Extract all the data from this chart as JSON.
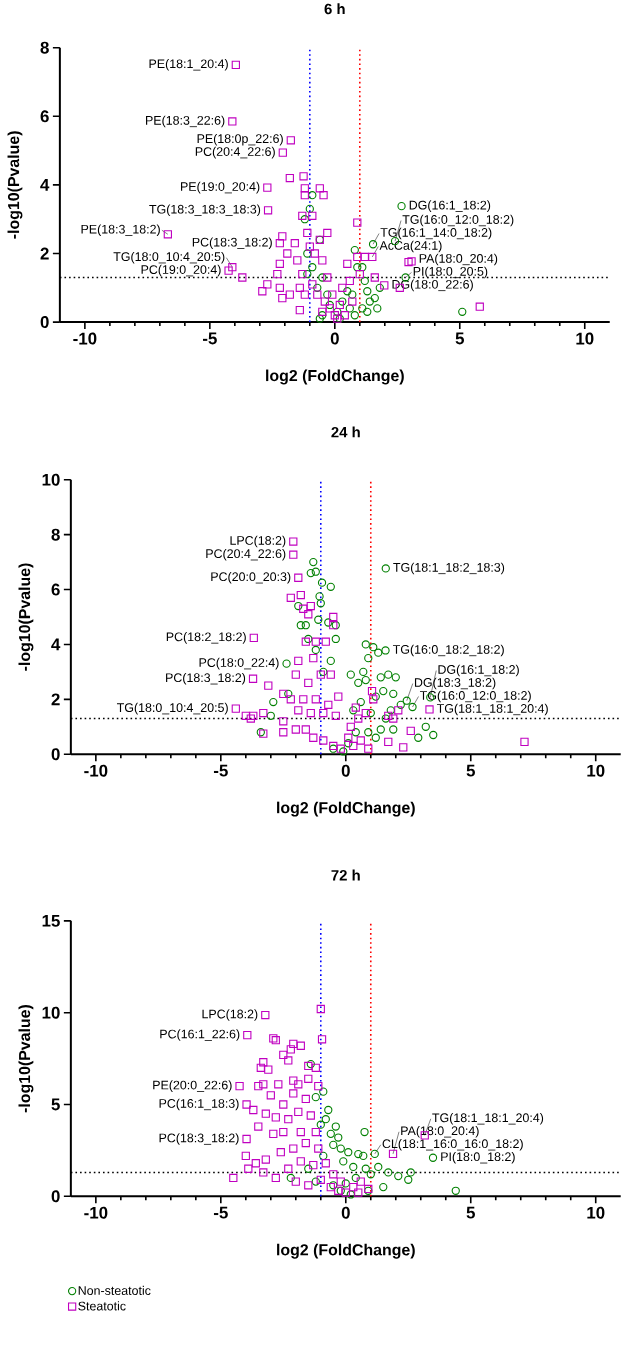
{
  "chart_data": [
    {
      "type": "scatter",
      "title": "6 h",
      "xlabel": "log2 (FoldChange)",
      "ylabel": "-log10(Pvalue)",
      "xlim": [
        -11,
        11
      ],
      "xticks": [
        -10,
        -5,
        0,
        5,
        10
      ],
      "ylim": [
        0,
        8
      ],
      "yticks": [
        0,
        2,
        4,
        6,
        8
      ],
      "series": [
        {
          "color": "#008000",
          "marker": "circle",
          "x": [
            -0.9,
            -1.0,
            -1.2,
            -0.6,
            -1.1,
            -0.9,
            -1.1,
            -0.5,
            -0.7,
            -0.3,
            -0.5,
            -0.6,
            0.1,
            0.3,
            0.5,
            0.8,
            0.9,
            1.1,
            1.2,
            1.53,
            2.67,
            2.41,
            2.83,
            1.3,
            1.4,
            1.6,
            1.7,
            1.3,
            1.1,
            0.8,
            0.7,
            5.1,
            1.8,
            0.6,
            0.2,
            -0.2
          ],
          "values": [
            3.7,
            3.3,
            3.0,
            2.4,
            2.0,
            1.6,
            1.4,
            1.3,
            1.0,
            0.8,
            0.2,
            0.1,
            0.3,
            0.6,
            0.9,
            2.1,
            1.6,
            1.6,
            1.2,
            2.27,
            3.38,
            2.36,
            1.3,
            0.9,
            0.6,
            0.7,
            0.4,
            0.3,
            0.4,
            0.2,
            0.8,
            0.3,
            1.0,
            0.4,
            0.1,
            0.5
          ]
        },
        {
          "color": "#c000c0",
          "marker": "square",
          "x": [
            -3.96,
            -4.1,
            -1.76,
            -2.08,
            -2.7,
            -2.67,
            -6.68,
            -2.2,
            -4.1,
            -4.25,
            1.5,
            3.07,
            1.98,
            2.95,
            -1.25,
            -1.8,
            -1.2,
            -0.6,
            -1.2,
            -0.45,
            -1.3,
            -0.9,
            -1.1,
            -0.3,
            -0.6,
            -2.1,
            -1.6,
            -1.9,
            -2.2,
            -1.5,
            -1.0,
            -0.8,
            -0.5,
            -1.3,
            -2.3,
            -2.7,
            -2.9,
            -2.2,
            -2.1,
            -1.8,
            -1.4,
            -1.2,
            -0.9,
            -0.7,
            -0.4,
            -0.2,
            0.0,
            0.1,
            -0.5,
            -1.4,
            -3.7,
            0.9,
            0.9,
            1.2,
            1.6,
            2.6,
            5.8,
            0.5,
            0.6,
            0.3,
            0.2,
            0.7,
            0.4,
            -0.1,
            -0.3,
            1.0
          ],
          "values": [
            7.5,
            5.85,
            5.3,
            4.94,
            3.92,
            3.26,
            2.56,
            2.3,
            1.6,
            1.5,
            1.9,
            1.77,
            1.07,
            1.75,
            4.25,
            4.2,
            3.9,
            3.9,
            3.7,
            3.7,
            3.1,
            3.1,
            2.6,
            2.6,
            2.4,
            2.5,
            2.3,
            2.0,
            1.7,
            1.8,
            2.2,
            2.0,
            1.8,
            1.4,
            1.4,
            1.1,
            0.9,
            1.0,
            0.7,
            0.8,
            1.0,
            0.8,
            1.1,
            0.8,
            0.6,
            0.4,
            0.2,
            0.1,
            0.3,
            0.35,
            1.3,
            2.9,
            1.9,
            1.9,
            1.3,
            1.0,
            0.45,
            1.7,
            1.2,
            1.0,
            0.5,
            0.6,
            0.2,
            0.8,
            1.3,
            1.4
          ]
        }
      ],
      "ref_lines": [
        {
          "axis": "x",
          "value": -1,
          "color": "#0000ff",
          "line_style": "dotted"
        },
        {
          "axis": "x",
          "value": 1,
          "color": "#ff0000",
          "line_style": "dotted"
        },
        {
          "axis": "y",
          "value": 1.3,
          "color": "#000000",
          "line_style": "dotted"
        }
      ],
      "annotations": [
        {
          "text": "PE(18:1_20:4)",
          "x": -3.96,
          "y": 7.5
        },
        {
          "text": "PE(18:3_22:6)",
          "x": -4.1,
          "y": 5.85
        },
        {
          "text": "PE(18:0p_22:6)",
          "x": -1.76,
          "y": 5.3
        },
        {
          "text": "PC(20:4_22:6)",
          "x": -2.08,
          "y": 4.94
        },
        {
          "text": "PE(19:0_20:4)",
          "x": -2.7,
          "y": 3.92
        },
        {
          "text": "TG(18:3_18:3_18:3)",
          "x": -2.67,
          "y": 3.26
        },
        {
          "text": "PE(18:3_18:2)",
          "x": -6.68,
          "y": 2.56
        },
        {
          "text": "PC(18:3_18:2)",
          "x": -2.2,
          "y": 2.3
        },
        {
          "text": "TG(18:0_10:4_20:5)",
          "x": -4.1,
          "y": 1.6
        },
        {
          "text": "PC(19:0_20:4)",
          "x": -4.25,
          "y": 1.5
        },
        {
          "text": "AcCa(24:1)",
          "x": 1.5,
          "y": 1.9
        },
        {
          "text": "TG(16:1_14:0_18:2)",
          "x": 1.53,
          "y": 2.27
        },
        {
          "text": "DG(16:1_18:2)",
          "x": 2.67,
          "y": 3.38
        },
        {
          "text": "TG(16:0_12:0_18:2)",
          "x": 2.41,
          "y": 2.36
        },
        {
          "text": "PA(18:0_20:4)",
          "x": 3.07,
          "y": 1.77
        },
        {
          "text": "PI(18:0_20:5)",
          "x": 2.83,
          "y": 1.3
        },
        {
          "text": "DG(18:0_22:6)",
          "x": 1.98,
          "y": 1.07
        }
      ]
    },
    {
      "type": "scatter",
      "title": "24 h",
      "xlabel": "log2 (FoldChange)",
      "ylabel": "-log10(Pvalue)",
      "xlim": [
        -11,
        11
      ],
      "xticks": [
        -10,
        -5,
        0,
        5,
        10
      ],
      "ylim": [
        0,
        10
      ],
      "yticks": [
        0,
        2,
        4,
        6,
        8,
        10
      ],
      "series": [
        {
          "color": "#008000",
          "marker": "circle",
          "x": [
            1.6,
            1.59,
            2.44,
            2.67,
            3.38,
            -2.37,
            -1.3,
            -1.4,
            -1.2,
            -0.95,
            -0.6,
            -1.05,
            -1.0,
            -1.1,
            -0.7,
            -0.4,
            -1.9,
            -1.8,
            -1.6,
            -1.5,
            -1.2,
            -0.4,
            -0.6,
            -0.9,
            -2.9,
            -2.3,
            -3.0,
            -3.4,
            -0.5,
            0.2,
            0.5,
            0.7,
            0.9,
            0.8,
            1.1,
            1.3,
            1.7,
            1.4,
            2.0,
            1.9,
            1.5,
            1.2,
            0.8,
            0.6,
            0.3,
            1.0,
            1.8,
            2.2,
            1.6,
            1.4,
            1.9,
            0.9,
            0.4,
            3.2,
            3.5,
            2.9,
            1.2,
            0.1,
            -0.1
          ],
          "values": [
            6.77,
            3.78,
            1.95,
            1.72,
            2.07,
            3.3,
            7.0,
            6.6,
            6.65,
            6.25,
            6.1,
            5.75,
            5.5,
            4.9,
            4.8,
            4.7,
            5.4,
            4.7,
            4.7,
            4.2,
            3.8,
            4.2,
            3.4,
            3.0,
            1.9,
            2.2,
            1.4,
            0.8,
            0.2,
            2.9,
            2.6,
            3.0,
            3.5,
            4.0,
            3.9,
            3.7,
            2.9,
            2.8,
            2.8,
            2.2,
            2.3,
            2.1,
            2.7,
            1.9,
            1.6,
            1.5,
            1.6,
            1.8,
            1.3,
            0.9,
            0.9,
            0.8,
            0.8,
            1.0,
            0.7,
            0.6,
            0.6,
            0.4,
            0.1
          ]
        },
        {
          "color": "#c000c0",
          "marker": "square",
          "x": [
            -2.1,
            -2.1,
            -1.9,
            -3.68,
            -3.71,
            -4.4,
            3.35,
            -2.2,
            -1.8,
            -1.7,
            -1.4,
            -1.5,
            -0.5,
            -0.5,
            -1.6,
            -1.2,
            -0.8,
            -1.9,
            -1.3,
            -2.0,
            -1.5,
            -1.0,
            -0.6,
            -3.1,
            -2.5,
            -2.2,
            -1.7,
            -1.2,
            -0.7,
            -0.3,
            -1.9,
            -1.4,
            -0.9,
            -0.4,
            -3.7,
            -4.0,
            -3.3,
            -3.8,
            -2.5,
            -2.5,
            -2.0,
            -1.6,
            -1.3,
            -0.9,
            -0.5,
            -0.2,
            -3.3,
            0.2,
            0.5,
            0.8,
            1.1,
            1.05,
            0.4,
            0.6,
            0.9,
            0.3,
            1.7,
            1.9,
            2.1,
            1.7,
            2.3,
            2.6,
            7.15,
            0.1
          ],
          "values": [
            7.75,
            7.27,
            6.43,
            4.24,
            2.75,
            1.66,
            1.63,
            5.7,
            5.8,
            5.3,
            5.4,
            5.1,
            5.0,
            4.7,
            4.1,
            4.1,
            4.1,
            3.4,
            3.5,
            2.9,
            2.6,
            2.9,
            2.9,
            2.5,
            2.2,
            2.0,
            2.0,
            2.0,
            1.8,
            2.1,
            1.6,
            1.5,
            1.5,
            1.4,
            1.4,
            1.4,
            1.5,
            1.3,
            1.2,
            0.8,
            0.9,
            0.9,
            0.6,
            0.5,
            0.3,
            0.2,
            0.75,
            1.0,
            1.3,
            1.5,
            2.0,
            2.3,
            1.7,
            0.5,
            0.2,
            0.3,
            1.4,
            1.3,
            1.6,
            0.45,
            0.25,
            0.85,
            0.45,
            0.6
          ]
        }
      ],
      "ref_lines": [
        {
          "axis": "x",
          "value": -1,
          "color": "#0000ff",
          "line_style": "dotted"
        },
        {
          "axis": "x",
          "value": 1,
          "color": "#ff0000",
          "line_style": "dotted"
        },
        {
          "axis": "y",
          "value": 1.3,
          "color": "#000000",
          "line_style": "dotted"
        }
      ],
      "annotations": [
        {
          "text": "LPC(18:2)",
          "x": -2.1,
          "y": 7.75
        },
        {
          "text": "PC(20:4_22:6)",
          "x": -2.1,
          "y": 7.27
        },
        {
          "text": "PC(20:0_20:3)",
          "x": -1.9,
          "y": 6.43
        },
        {
          "text": "PC(18:2_18:2)",
          "x": -3.68,
          "y": 4.24
        },
        {
          "text": "PC(18:0_22:4)",
          "x": -2.37,
          "y": 3.3
        },
        {
          "text": "PC(18:3_18:2)",
          "x": -3.71,
          "y": 2.75
        },
        {
          "text": "TG(18:0_10:4_20:5)",
          "x": -4.4,
          "y": 1.66
        },
        {
          "text": "TG(18:1_18:2_18:3)",
          "x": 1.6,
          "y": 6.77
        },
        {
          "text": "TG(16:0_18:2_18:2)",
          "x": 1.59,
          "y": 3.78
        },
        {
          "text": "DG(18:3_18:2)",
          "x": 2.44,
          "y": 1.95
        },
        {
          "text": "TG(16:0_12:0_18:2)",
          "x": 2.67,
          "y": 1.72
        },
        {
          "text": "DG(16:1_18:2)",
          "x": 3.38,
          "y": 2.07
        },
        {
          "text": "TG(18:1_18:1_20:4)",
          "x": 3.35,
          "y": 1.63
        }
      ]
    },
    {
      "type": "scatter",
      "title": "72 h",
      "xlabel": "log2 (FoldChange)",
      "ylabel": "-log10(Pvalue)",
      "xlim": [
        -11,
        11
      ],
      "xticks": [
        -10,
        -5,
        0,
        5,
        10
      ],
      "ylim": [
        0,
        15
      ],
      "yticks": [
        0,
        5,
        10,
        15
      ],
      "legend": "bottom",
      "series": [
        {
          "name": "Non-steatotic",
          "color": "#008000",
          "marker": "circle",
          "x": [
            1.16,
            3.49,
            -1.4,
            -1.2,
            -0.9,
            -0.7,
            -0.8,
            -0.4,
            -0.6,
            -0.3,
            -1.0,
            -0.5,
            -0.2,
            0.1,
            0.7,
            0.75,
            0.5,
            0.8,
            0.3,
            -0.1,
            -0.9,
            -1.5,
            -2.2,
            -1.2,
            -0.5,
            0.0,
            0.4,
            1.0,
            1.3,
            1.7,
            2.1,
            2.5,
            1.5,
            0.9,
            0.2,
            -0.2,
            4.4,
            2.6
          ],
          "values": [
            2.31,
            2.1,
            7.2,
            5.4,
            5.7,
            4.7,
            4.2,
            3.8,
            3.4,
            3.2,
            3.9,
            2.8,
            2.6,
            2.4,
            2.2,
            3.5,
            2.3,
            1.5,
            1.6,
            1.9,
            2.2,
            1.5,
            1.0,
            0.8,
            0.6,
            0.7,
            1.0,
            1.2,
            1.6,
            1.3,
            1.1,
            0.9,
            0.5,
            0.3,
            0.1,
            0.3,
            0.3,
            1.3
          ]
        },
        {
          "name": "Steatotic",
          "color": "#c000c0",
          "marker": "square",
          "x": [
            -3.22,
            -3.94,
            -4.25,
            -3.97,
            -3.97,
            1.89,
            3.16,
            -1.0,
            -0.95,
            -2.9,
            -2.8,
            -2.1,
            -2.2,
            -1.8,
            -2.5,
            -2.3,
            -3.3,
            -3.4,
            -3.1,
            -1.5,
            -1.2,
            -3.5,
            -3.3,
            -2.7,
            -2.1,
            -1.9,
            -1.5,
            -1.1,
            -3.0,
            -2.5,
            -2.1,
            -1.6,
            -3.7,
            -3.2,
            -2.8,
            -2.3,
            -1.9,
            -1.4,
            -3.5,
            -2.9,
            -2.5,
            -1.8,
            -1.2,
            -4.0,
            -3.6,
            -3.2,
            -2.6,
            -2.1,
            -1.6,
            -1.1,
            -4.5,
            -3.9,
            -3.3,
            -2.8,
            -2.3,
            -1.8,
            -1.3,
            -0.8,
            -0.5,
            -2.0,
            -1.5,
            -1.0,
            -0.6,
            -0.3,
            0.0,
            0.3,
            0.6,
            0.9,
            0.5,
            -0.2
          ],
          "values": [
            9.87,
            8.78,
            6.0,
            5.0,
            3.12,
            2.31,
            3.32,
            10.2,
            8.55,
            8.6,
            8.5,
            8.3,
            8.0,
            8.2,
            7.7,
            7.4,
            7.3,
            7.0,
            6.9,
            7.1,
            7.0,
            6.0,
            6.1,
            6.1,
            6.3,
            6.1,
            6.4,
            6.0,
            5.5,
            5.0,
            5.6,
            5.3,
            4.7,
            4.5,
            4.3,
            4.2,
            4.6,
            4.4,
            3.8,
            3.4,
            3.5,
            3.5,
            3.5,
            2.2,
            1.8,
            2.0,
            2.4,
            2.6,
            2.9,
            2.6,
            1.0,
            1.5,
            1.3,
            1.0,
            1.5,
            1.9,
            1.7,
            1.8,
            1.2,
            0.8,
            0.6,
            0.9,
            0.5,
            0.3,
            0.2,
            0.5,
            0.8,
            0.4,
            0.2,
            0.8
          ]
        }
      ],
      "ref_lines": [
        {
          "axis": "x",
          "value": -1,
          "color": "#0000ff",
          "line_style": "dotted"
        },
        {
          "axis": "x",
          "value": 1,
          "color": "#ff0000",
          "line_style": "dotted"
        },
        {
          "axis": "y",
          "value": 1.3,
          "color": "#000000",
          "line_style": "dotted"
        }
      ],
      "annotations": [
        {
          "text": "LPC(18:2)",
          "x": -3.22,
          "y": 9.87
        },
        {
          "text": "PC(16:1_22:6)",
          "x": -3.94,
          "y": 8.78
        },
        {
          "text": "PE(20:0_22:6)",
          "x": -4.25,
          "y": 6.0
        },
        {
          "text": "PC(16:1_18:3)",
          "x": -3.97,
          "y": 5.0
        },
        {
          "text": "PC(18:3_18:2)",
          "x": -3.97,
          "y": 3.12
        },
        {
          "text": "CL(18:1_16:0_16:0_18:2)",
          "x": 1.16,
          "y": 2.31
        },
        {
          "text": "PA(18:0_20:4)",
          "x": 1.89,
          "y": 2.31
        },
        {
          "text": "TG(18:1_18:1_20:4)",
          "x": 3.16,
          "y": 3.32
        },
        {
          "text": "PI(18:0_18:2)",
          "x": 3.49,
          "y": 2.1
        }
      ]
    }
  ]
}
